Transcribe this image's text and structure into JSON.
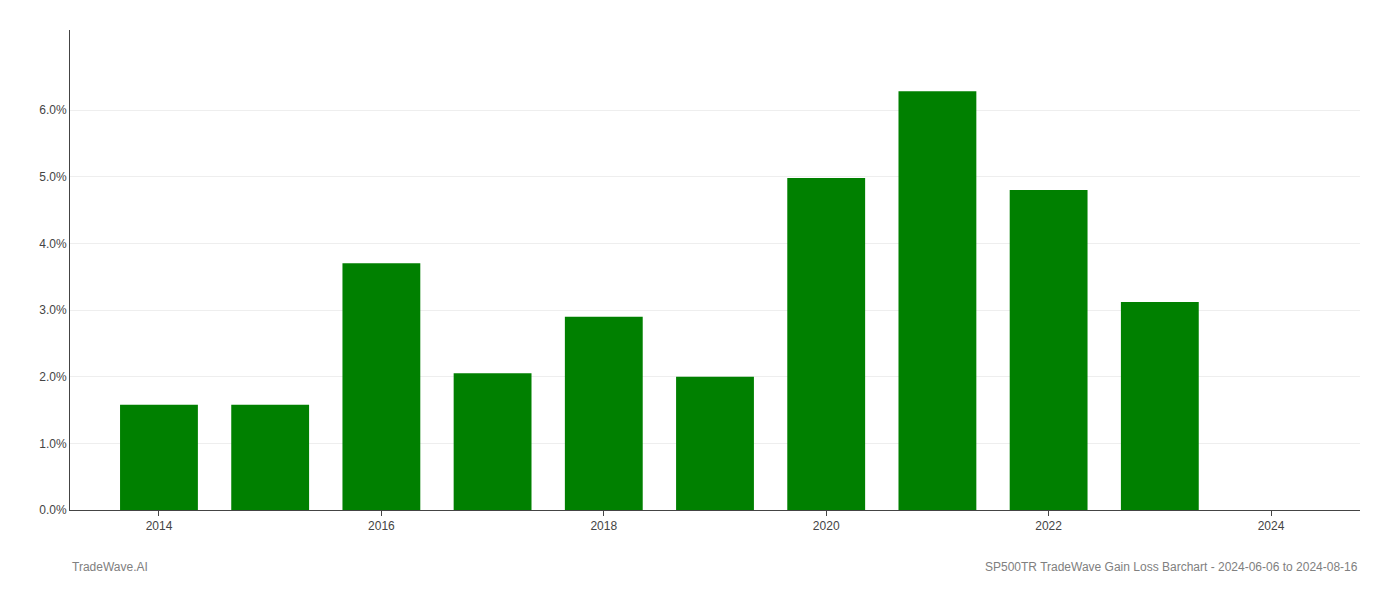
{
  "chart_data": {
    "type": "bar",
    "x": [
      2014,
      2015,
      2016,
      2017,
      2018,
      2019,
      2020,
      2021,
      2022,
      2023
    ],
    "values": [
      0.0158,
      0.0158,
      0.037,
      0.0205,
      0.029,
      0.02,
      0.0498,
      0.0628,
      0.048,
      0.0312
    ],
    "color": "#008000",
    "xlim": [
      2013.2,
      2024.8
    ],
    "xticks": [
      2014,
      2016,
      2018,
      2020,
      2022,
      2024
    ],
    "ylim": [
      0.0,
      0.072
    ],
    "yticks": [
      {
        "value": 0.0,
        "label": "0.0%"
      },
      {
        "value": 0.01,
        "label": "1.0%"
      },
      {
        "value": 0.02,
        "label": "2.0%"
      },
      {
        "value": 0.03,
        "label": "3.0%"
      },
      {
        "value": 0.04,
        "label": "4.0%"
      },
      {
        "value": 0.05,
        "label": "5.0%"
      },
      {
        "value": 0.06,
        "label": "6.0%"
      }
    ],
    "grid": true,
    "annotations": [
      "TradeWave.AI",
      "SP500TR TradeWave Gain Loss Barchart - 2024-06-06 to 2024-08-16"
    ]
  }
}
